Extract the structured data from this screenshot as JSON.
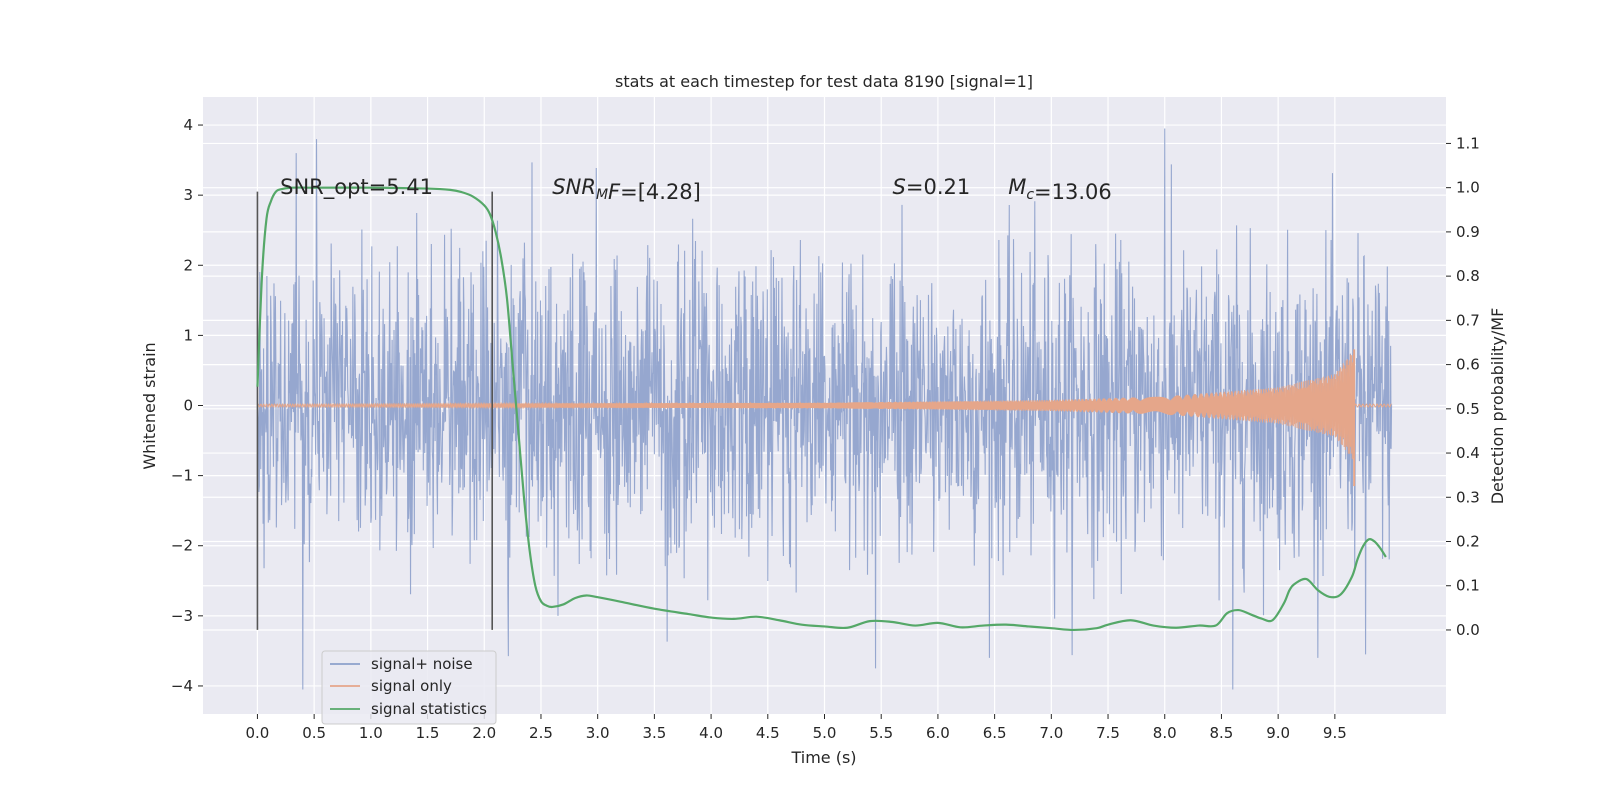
{
  "chart_data": {
    "type": "line",
    "title": "stats at each timestep for test data 8190 [signal=1]",
    "xlabel": "Time (s)",
    "ylabel": "Whitened strain",
    "ylabel_right": "Detection probability/MF",
    "xlim": [
      -0.48,
      10.48
    ],
    "ylim": [
      -4.4,
      4.4
    ],
    "ylim_right": [
      -0.19,
      1.205
    ],
    "x_ticks": [
      "0.0",
      "0.5",
      "1.0",
      "1.5",
      "2.0",
      "2.5",
      "3.0",
      "3.5",
      "4.0",
      "4.5",
      "5.0",
      "5.5",
      "6.0",
      "6.5",
      "7.0",
      "7.5",
      "8.0",
      "8.5",
      "9.0",
      "9.5"
    ],
    "x_tick_values": [
      0.0,
      0.5,
      1.0,
      1.5,
      2.0,
      2.5,
      3.0,
      3.5,
      4.0,
      4.5,
      5.0,
      5.5,
      6.0,
      6.5,
      7.0,
      7.5,
      8.0,
      8.5,
      9.0,
      9.5
    ],
    "y_ticks": [
      "−4",
      "−3",
      "−2",
      "−1",
      "0",
      "1",
      "2",
      "3",
      "4"
    ],
    "y_tick_values": [
      -4,
      -3,
      -2,
      -1,
      0,
      1,
      2,
      3,
      4
    ],
    "y_right_ticks": [
      "0.0",
      "0.1",
      "0.2",
      "0.3",
      "0.4",
      "0.5",
      "0.6",
      "0.7",
      "0.8",
      "0.9",
      "1.0",
      "1.1"
    ],
    "y_right_tick_values": [
      0.0,
      0.1,
      0.2,
      0.3,
      0.4,
      0.5,
      0.6,
      0.7,
      0.8,
      0.9,
      1.0,
      1.1
    ],
    "grid": true,
    "legend_position": "lower-left",
    "series": [
      {
        "name": "signal+ noise",
        "color": "#8da0cb",
        "axis": "left",
        "description": "whitened noisy strain, roughly gaussian noise spanning about -4 to 4 from t=0 to t=10",
        "x_range": [
          0.0,
          10.0
        ],
        "envelope_typical": [
          -1.9,
          1.9
        ],
        "extremes": [
          {
            "x": 0.4,
            "y": -4.05
          },
          {
            "x": 0.52,
            "y": 3.8
          },
          {
            "x": 8.0,
            "y": 3.95
          },
          {
            "x": 8.6,
            "y": -4.05
          },
          {
            "x": 9.77,
            "y": -3.55
          },
          {
            "x": 5.45,
            "y": -3.75
          }
        ]
      },
      {
        "name": "signal only",
        "color": "#e5a68a",
        "axis": "left",
        "description": "chirp waveform, amplitude near 0 growing to about 0.8 at merger near t=9.67",
        "amplitude_points": [
          {
            "x": 0.0,
            "y": 0.02
          },
          {
            "x": 5.0,
            "y": 0.04
          },
          {
            "x": 7.0,
            "y": 0.08
          },
          {
            "x": 8.0,
            "y": 0.13
          },
          {
            "x": 9.0,
            "y": 0.26
          },
          {
            "x": 9.5,
            "y": 0.45
          },
          {
            "x": 9.67,
            "y": 0.8
          }
        ]
      },
      {
        "name": "signal statistics",
        "color": "#55a868",
        "axis": "right",
        "x": [
          0.0,
          0.04,
          0.08,
          0.12,
          0.16,
          0.2,
          0.3,
          0.5,
          1.0,
          1.5,
          1.7,
          1.8,
          1.9,
          2.0,
          2.05,
          2.1,
          2.15,
          2.2,
          2.25,
          2.3,
          2.35,
          2.4,
          2.45,
          2.5,
          2.55,
          2.6,
          2.7,
          2.8,
          2.9,
          3.0,
          3.2,
          3.5,
          3.8,
          4.0,
          4.2,
          4.4,
          4.6,
          4.8,
          5.0,
          5.2,
          5.4,
          5.6,
          5.8,
          6.0,
          6.2,
          6.4,
          6.6,
          6.8,
          7.0,
          7.2,
          7.4,
          7.5,
          7.7,
          7.9,
          8.1,
          8.3,
          8.45,
          8.55,
          8.65,
          8.75,
          8.85,
          8.95,
          9.05,
          9.1,
          9.15,
          9.25,
          9.35,
          9.45,
          9.55,
          9.65,
          9.7,
          9.75,
          9.8,
          9.85,
          9.9,
          9.95
        ],
        "values": [
          0.55,
          0.8,
          0.93,
          0.97,
          0.99,
          0.996,
          1.0,
          1.0,
          1.0,
          0.998,
          0.995,
          0.99,
          0.98,
          0.96,
          0.94,
          0.9,
          0.84,
          0.75,
          0.6,
          0.45,
          0.3,
          0.18,
          0.1,
          0.065,
          0.055,
          0.052,
          0.058,
          0.072,
          0.078,
          0.074,
          0.064,
          0.048,
          0.036,
          0.028,
          0.025,
          0.03,
          0.022,
          0.012,
          0.008,
          0.005,
          0.02,
          0.018,
          0.01,
          0.016,
          0.006,
          0.01,
          0.012,
          0.008,
          0.004,
          0.0,
          0.004,
          0.012,
          0.022,
          0.01,
          0.005,
          0.01,
          0.01,
          0.038,
          0.045,
          0.036,
          0.026,
          0.022,
          0.06,
          0.09,
          0.105,
          0.115,
          0.09,
          0.075,
          0.08,
          0.12,
          0.16,
          0.19,
          0.205,
          0.2,
          0.185,
          0.165
        ]
      }
    ],
    "vertical_lines": [
      {
        "x": 0.0,
        "y_range": [
          -3.2,
          3.05
        ],
        "color": "#555555"
      },
      {
        "x": 2.07,
        "y_range": [
          -3.2,
          3.05
        ],
        "color": "#555555"
      }
    ],
    "annotations": [
      {
        "x": 0.2,
        "y": 3.02,
        "text": "SNR_opt=5.41",
        "kind": "plain"
      },
      {
        "x": 2.6,
        "y": 3.02,
        "main": "SNR",
        "sub": "M",
        "italic_tail": "F",
        "rest": "=[4.28]",
        "kind": "math"
      },
      {
        "x": 5.6,
        "y": 3.02,
        "main": "S",
        "rest": "=0.21",
        "kind": "math"
      },
      {
        "x": 6.62,
        "y": 3.02,
        "main": "M",
        "sub": "c",
        "rest": "=13.06",
        "kind": "math"
      }
    ]
  }
}
